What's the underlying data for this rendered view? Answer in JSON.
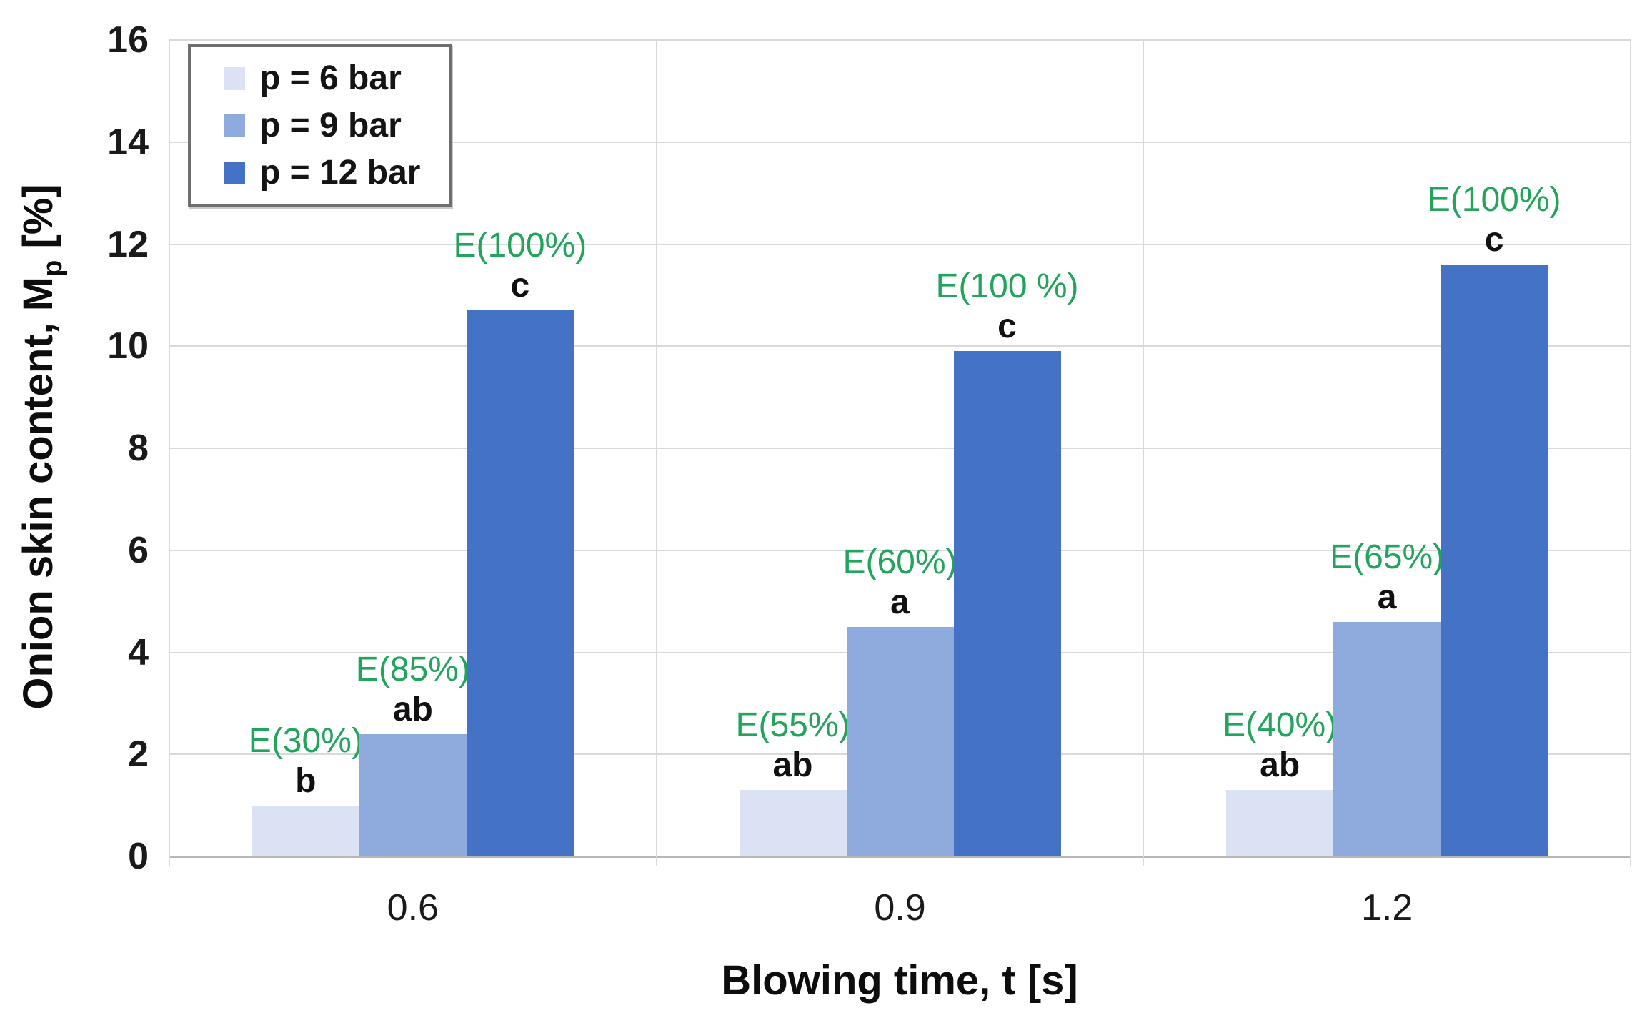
{
  "chart_data": {
    "type": "bar",
    "title": "",
    "categories": [
      "0.6",
      "0.9",
      "1.2"
    ],
    "series": [
      {
        "name": "p = 6 bar",
        "color": "#dbe2f3",
        "values": [
          1.0,
          1.3,
          1.3
        ],
        "efficiency_labels": [
          "E(30%)",
          "E(55%)",
          "E(40%)"
        ],
        "significance_letters": [
          "b",
          "ab",
          "ab"
        ]
      },
      {
        "name": "p = 9 bar",
        "color": "#8faadc",
        "values": [
          2.4,
          4.5,
          4.6
        ],
        "efficiency_labels": [
          "E(85%)",
          "E(60%)",
          "E(65%)"
        ],
        "significance_letters": [
          "ab",
          "a",
          "a"
        ]
      },
      {
        "name": "p = 12 bar",
        "color": "#4472c4",
        "values": [
          10.7,
          9.9,
          11.6
        ],
        "efficiency_labels": [
          "E(100%)",
          "E(100 %)",
          "E(100%)"
        ],
        "significance_letters": [
          "c",
          "c",
          "c"
        ]
      }
    ],
    "xlabel": "Blowing time, t [s]",
    "ylabel_main": "Onion skin content, M",
    "ylabel_sub": "p",
    "ylabel_unit": " [%]",
    "ylim": [
      0,
      16
    ],
    "ytick_step": 2,
    "yticks": [
      "0",
      "2",
      "4",
      "6",
      "8",
      "10",
      "12",
      "14",
      "16"
    ],
    "grid": "horizontal gridlines on, vertical category separators on",
    "legend_position": "top-left inside plot",
    "annotation_color": "#23a45c",
    "colors": {
      "gridline": "#d9d9d9",
      "x_axis_line": "#b7b7b7",
      "text": "#111111"
    }
  }
}
